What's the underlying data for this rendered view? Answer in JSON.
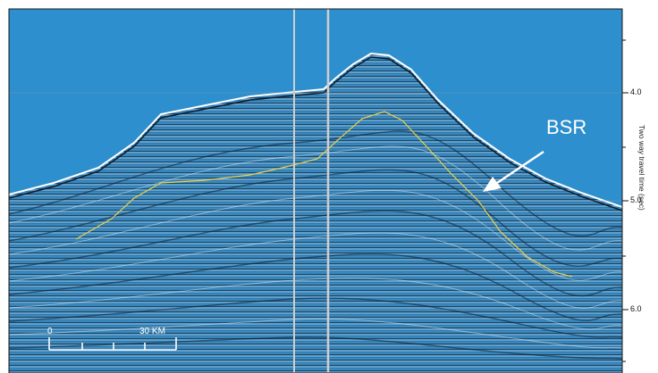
{
  "annotation": {
    "label": "BSR",
    "color": "#ffffff"
  },
  "scale_bar": {
    "start_label": "0",
    "end_label": "30 KM"
  },
  "axis": {
    "title": "Two way travel time (sec)",
    "ticks": [
      "4.0",
      "5.0",
      "6.0"
    ]
  },
  "colors": {
    "water": "#2e8fce",
    "sediment": "#3a8cc4",
    "bsr_line": "#e8d24a",
    "survey_lines": "#c8c8c8"
  }
}
